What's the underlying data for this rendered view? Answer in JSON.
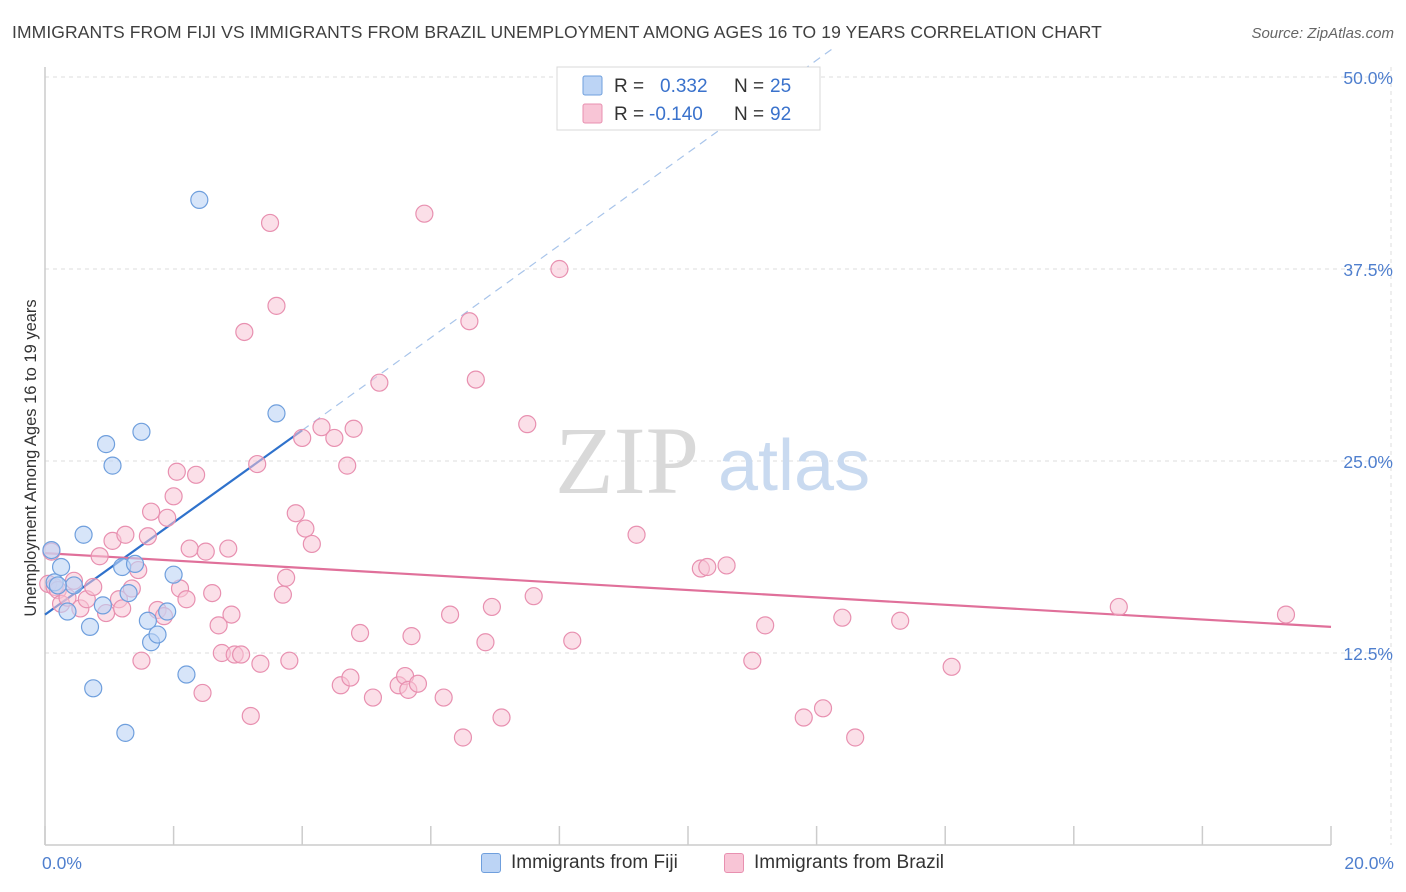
{
  "title": "IMMIGRANTS FROM FIJI VS IMMIGRANTS FROM BRAZIL UNEMPLOYMENT AMONG AGES 16 TO 19 YEARS CORRELATION CHART",
  "source": "Source: ZipAtlas.com",
  "watermark": {
    "zip": "ZIP",
    "atlas": "atlas"
  },
  "colors": {
    "fiji_fill": "#bcd4f5",
    "fiji_stroke": "#6f9fdd",
    "fiji_line": "#2f72cc",
    "brazil_fill": "#f8c5d6",
    "brazil_stroke": "#e890b0",
    "brazil_line": "#e0709a",
    "axis_label": "#4f7fce",
    "grid": "#dddddd"
  },
  "chart_data": {
    "type": "scatter",
    "title": "IMMIGRANTS FROM FIJI VS IMMIGRANTS FROM BRAZIL UNEMPLOYMENT AMONG AGES 16 TO 19 YEARS CORRELATION CHART",
    "xlabel": "",
    "ylabel": "Unemployment Among Ages 16 to 19 years",
    "xlim": [
      0,
      20
    ],
    "ylim": [
      0,
      50
    ],
    "x_tick_labels": [
      {
        "value": 0,
        "label": "0.0%"
      },
      {
        "value": 20,
        "label": "20.0%"
      }
    ],
    "y_tick_labels": [
      {
        "value": 12.5,
        "label": "12.5%"
      },
      {
        "value": 25,
        "label": "25.0%"
      },
      {
        "value": 37.5,
        "label": "37.5%"
      },
      {
        "value": 50,
        "label": "50.0%"
      }
    ],
    "legend": [
      {
        "series": "Immigrants from Fiji",
        "r_label": "R =",
        "r_value": "0.332",
        "n_label": "N =",
        "n_value": "25"
      },
      {
        "series": "Immigrants from Brazil",
        "r_label": "R =",
        "r_value": "-0.140",
        "n_label": "N =",
        "n_value": "92"
      }
    ],
    "series": [
      {
        "name": "Immigrants from Fiji",
        "trend": {
          "x0": 0.0,
          "y0": 15.0,
          "x1": 4.0,
          "y1": 27.0,
          "dash_x1": 12.3,
          "dash_y1": 52.0
        },
        "points": [
          [
            0.1,
            19.2
          ],
          [
            0.15,
            17.1
          ],
          [
            0.25,
            18.1
          ],
          [
            0.35,
            15.2
          ],
          [
            0.45,
            16.9
          ],
          [
            0.6,
            20.2
          ],
          [
            0.7,
            14.2
          ],
          [
            0.75,
            10.2
          ],
          [
            0.9,
            15.6
          ],
          [
            0.95,
            26.1
          ],
          [
            1.05,
            24.7
          ],
          [
            1.2,
            18.1
          ],
          [
            1.25,
            7.3
          ],
          [
            1.3,
            16.4
          ],
          [
            1.4,
            18.3
          ],
          [
            1.5,
            26.9
          ],
          [
            1.6,
            14.6
          ],
          [
            1.65,
            13.2
          ],
          [
            1.75,
            13.7
          ],
          [
            1.9,
            15.2
          ],
          [
            2.0,
            17.6
          ],
          [
            2.2,
            11.1
          ],
          [
            2.4,
            42.0
          ],
          [
            3.6,
            28.1
          ],
          [
            0.2,
            16.9
          ]
        ]
      },
      {
        "name": "Immigrants from Brazil",
        "trend": {
          "x0": 0.0,
          "y0": 19.0,
          "x1": 20.0,
          "y1": 14.2
        },
        "points": [
          [
            0.05,
            17.0
          ],
          [
            0.1,
            19.1
          ],
          [
            0.15,
            16.8
          ],
          [
            0.2,
            16.6
          ],
          [
            0.25,
            15.7
          ],
          [
            0.35,
            16.1
          ],
          [
            0.45,
            17.2
          ],
          [
            0.55,
            15.4
          ],
          [
            0.65,
            16.0
          ],
          [
            0.75,
            16.8
          ],
          [
            0.85,
            18.8
          ],
          [
            0.95,
            15.1
          ],
          [
            1.05,
            19.8
          ],
          [
            1.15,
            16.0
          ],
          [
            1.2,
            15.4
          ],
          [
            1.25,
            20.2
          ],
          [
            1.35,
            16.7
          ],
          [
            1.45,
            17.9
          ],
          [
            1.5,
            12.0
          ],
          [
            1.6,
            20.1
          ],
          [
            1.65,
            21.7
          ],
          [
            1.75,
            15.3
          ],
          [
            1.85,
            14.9
          ],
          [
            1.9,
            21.3
          ],
          [
            2.0,
            22.7
          ],
          [
            2.05,
            24.3
          ],
          [
            2.1,
            16.7
          ],
          [
            2.2,
            16.0
          ],
          [
            2.25,
            19.3
          ],
          [
            2.35,
            24.1
          ],
          [
            2.45,
            9.9
          ],
          [
            2.5,
            19.1
          ],
          [
            2.6,
            16.4
          ],
          [
            2.7,
            14.3
          ],
          [
            2.75,
            12.5
          ],
          [
            2.85,
            19.3
          ],
          [
            2.9,
            15.0
          ],
          [
            2.95,
            12.4
          ],
          [
            3.05,
            12.4
          ],
          [
            3.1,
            33.4
          ],
          [
            3.2,
            8.4
          ],
          [
            3.3,
            24.8
          ],
          [
            3.35,
            11.8
          ],
          [
            3.5,
            40.5
          ],
          [
            3.6,
            35.1
          ],
          [
            3.7,
            16.3
          ],
          [
            3.75,
            17.4
          ],
          [
            3.8,
            12.0
          ],
          [
            3.9,
            21.6
          ],
          [
            4.0,
            26.5
          ],
          [
            4.05,
            20.6
          ],
          [
            4.15,
            19.6
          ],
          [
            4.3,
            27.2
          ],
          [
            4.5,
            26.5
          ],
          [
            4.6,
            10.4
          ],
          [
            4.7,
            24.7
          ],
          [
            4.75,
            10.9
          ],
          [
            4.8,
            27.1
          ],
          [
            4.9,
            13.8
          ],
          [
            5.1,
            9.6
          ],
          [
            5.2,
            30.1
          ],
          [
            5.5,
            10.4
          ],
          [
            5.6,
            11.0
          ],
          [
            5.65,
            10.1
          ],
          [
            5.7,
            13.6
          ],
          [
            5.8,
            10.5
          ],
          [
            5.9,
            41.1
          ],
          [
            6.2,
            9.6
          ],
          [
            6.3,
            15.0
          ],
          [
            6.5,
            7.0
          ],
          [
            6.6,
            34.1
          ],
          [
            6.7,
            30.3
          ],
          [
            6.85,
            13.2
          ],
          [
            6.95,
            15.5
          ],
          [
            7.1,
            8.3
          ],
          [
            7.5,
            27.4
          ],
          [
            7.6,
            16.2
          ],
          [
            8.0,
            37.5
          ],
          [
            8.2,
            13.3
          ],
          [
            9.2,
            20.2
          ],
          [
            10.2,
            18.0
          ],
          [
            10.3,
            18.1
          ],
          [
            10.6,
            18.2
          ],
          [
            11.0,
            12.0
          ],
          [
            11.2,
            14.3
          ],
          [
            11.8,
            8.3
          ],
          [
            12.1,
            8.9
          ],
          [
            12.4,
            14.8
          ],
          [
            12.6,
            7.0
          ],
          [
            13.3,
            14.6
          ],
          [
            14.1,
            11.6
          ],
          [
            16.7,
            15.5
          ],
          [
            19.3,
            15.0
          ]
        ]
      }
    ]
  },
  "bottom_legend": [
    {
      "label": "Immigrants from Fiji"
    },
    {
      "label": "Immigrants from Brazil"
    }
  ]
}
